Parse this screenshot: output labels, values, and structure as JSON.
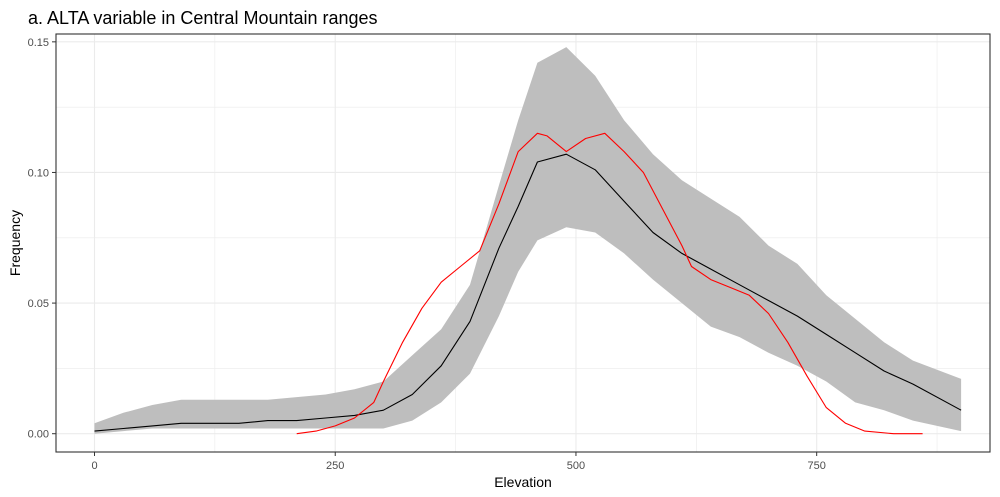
{
  "chart_data": {
    "type": "line",
    "title": "a. ALTA variable in Central Mountain ranges",
    "xlabel": "Elevation",
    "ylabel": "Frequency",
    "xlim": [
      -40,
      930
    ],
    "ylim": [
      -0.007,
      0.153
    ],
    "x_ticks": [
      0,
      250,
      500,
      750
    ],
    "x_tick_labels": [
      "0",
      "250",
      "500",
      "750"
    ],
    "y_ticks": [
      0.0,
      0.05,
      0.1,
      0.15
    ],
    "y_tick_labels": [
      "0.00",
      "0.05",
      "0.10",
      "0.15"
    ],
    "x_minor_gridlines": [
      125,
      375,
      625,
      875
    ],
    "y_minor_gridlines": [
      0.025,
      0.075,
      0.125
    ],
    "grid": true,
    "colors": {
      "ribbon": "#bebebe",
      "mean_line": "#000000",
      "observed_line": "#ff0000",
      "grid": "#ebebeb",
      "panel_border": "#333333"
    },
    "series": [
      {
        "kind": "ribbon",
        "x": [
          0,
          30,
          60,
          90,
          120,
          150,
          180,
          210,
          240,
          270,
          300,
          330,
          360,
          390,
          420,
          440,
          460,
          490,
          520,
          550,
          580,
          610,
          640,
          670,
          700,
          730,
          760,
          790,
          820,
          850,
          900
        ],
        "lower": [
          0.0,
          0.001,
          0.002,
          0.002,
          0.002,
          0.002,
          0.002,
          0.002,
          0.002,
          0.002,
          0.002,
          0.005,
          0.012,
          0.023,
          0.045,
          0.062,
          0.074,
          0.079,
          0.077,
          0.069,
          0.059,
          0.05,
          0.041,
          0.037,
          0.031,
          0.026,
          0.02,
          0.012,
          0.009,
          0.005,
          0.001
        ],
        "upper": [
          0.004,
          0.008,
          0.011,
          0.013,
          0.013,
          0.013,
          0.013,
          0.014,
          0.015,
          0.017,
          0.02,
          0.03,
          0.04,
          0.057,
          0.095,
          0.12,
          0.142,
          0.148,
          0.137,
          0.12,
          0.107,
          0.097,
          0.09,
          0.083,
          0.072,
          0.065,
          0.053,
          0.044,
          0.035,
          0.028,
          0.021
        ]
      },
      {
        "kind": "line",
        "role": "mean",
        "x": [
          0,
          30,
          60,
          90,
          120,
          150,
          180,
          210,
          240,
          270,
          300,
          330,
          360,
          390,
          420,
          440,
          460,
          490,
          520,
          550,
          580,
          610,
          640,
          670,
          700,
          730,
          760,
          790,
          820,
          850,
          900
        ],
        "y": [
          0.001,
          0.002,
          0.003,
          0.004,
          0.004,
          0.004,
          0.005,
          0.005,
          0.006,
          0.007,
          0.009,
          0.015,
          0.026,
          0.043,
          0.071,
          0.087,
          0.104,
          0.107,
          0.101,
          0.089,
          0.077,
          0.069,
          0.063,
          0.057,
          0.051,
          0.045,
          0.038,
          0.031,
          0.024,
          0.019,
          0.009
        ]
      },
      {
        "kind": "line",
        "role": "observed",
        "x": [
          210,
          230,
          250,
          270,
          290,
          300,
          320,
          340,
          360,
          380,
          400,
          420,
          440,
          460,
          470,
          490,
          510,
          530,
          550,
          570,
          590,
          610,
          620,
          640,
          660,
          680,
          700,
          720,
          740,
          760,
          780,
          800,
          830,
          860
        ],
        "y": [
          0.0,
          0.001,
          0.003,
          0.006,
          0.012,
          0.02,
          0.035,
          0.048,
          0.058,
          0.064,
          0.07,
          0.088,
          0.108,
          0.115,
          0.114,
          0.108,
          0.113,
          0.115,
          0.108,
          0.1,
          0.086,
          0.072,
          0.064,
          0.059,
          0.056,
          0.053,
          0.046,
          0.035,
          0.022,
          0.01,
          0.004,
          0.001,
          0.0,
          0.0
        ]
      }
    ]
  }
}
